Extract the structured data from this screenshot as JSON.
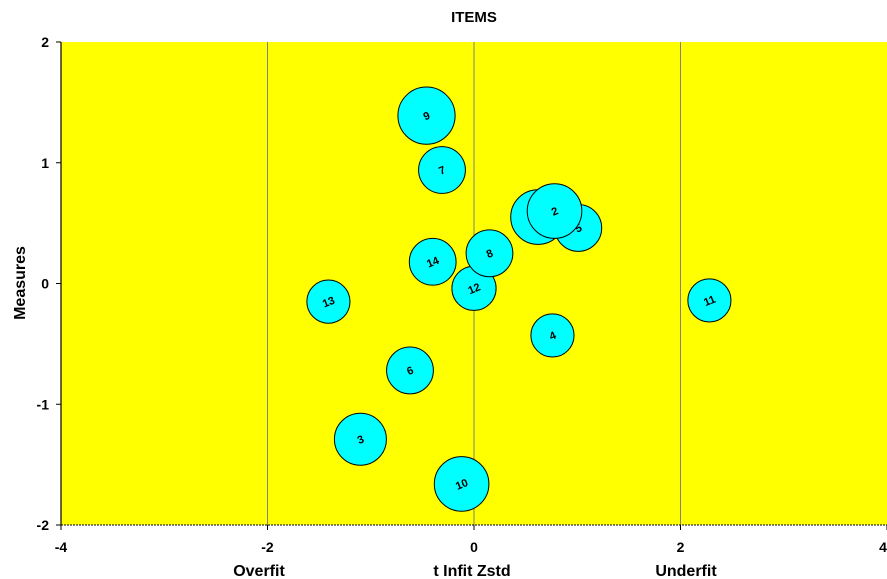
{
  "chart_data": {
    "type": "scatter",
    "subtype": "bubble",
    "title": "ITEMS",
    "xlabel": "t Infit Zstd",
    "ylabel": "Measures",
    "x_region_labels": [
      "Overfit",
      "Underfit"
    ],
    "xlim": [
      -4,
      4
    ],
    "ylim": [
      -2,
      2
    ],
    "x_ticks": [
      -4,
      -2,
      0,
      2,
      4
    ],
    "y_ticks": [
      -2,
      -1,
      0,
      1,
      2
    ],
    "x_tick_labels": [
      "-4",
      "-2",
      "0",
      "2",
      "4"
    ],
    "y_tick_labels": [
      "-2",
      "-1",
      "0",
      "1",
      "2"
    ],
    "grid": "vertical",
    "background_color": "#ffff00",
    "bubble_color": "#00ffff",
    "points": [
      {
        "label": "1",
        "x": 0.62,
        "y": 0.55,
        "size": 1.05
      },
      {
        "label": "2",
        "x": 0.78,
        "y": 0.6,
        "size": 1.05
      },
      {
        "label": "3",
        "x": -1.1,
        "y": -1.29,
        "size": 1.0
      },
      {
        "label": "4",
        "x": 0.76,
        "y": -0.43,
        "size": 0.83
      },
      {
        "label": "5",
        "x": 1.01,
        "y": 0.46,
        "size": 0.9
      },
      {
        "label": "6",
        "x": -0.62,
        "y": -0.72,
        "size": 0.9
      },
      {
        "label": "7",
        "x": -0.31,
        "y": 0.94,
        "size": 0.9
      },
      {
        "label": "8",
        "x": 0.15,
        "y": 0.25,
        "size": 0.9
      },
      {
        "label": "9",
        "x": -0.46,
        "y": 1.39,
        "size": 1.1
      },
      {
        "label": "10",
        "x": -0.12,
        "y": -1.66,
        "size": 1.05
      },
      {
        "label": "11",
        "x": 2.28,
        "y": -0.14,
        "size": 0.83
      },
      {
        "label": "12",
        "x": 0.0,
        "y": -0.04,
        "size": 0.85
      },
      {
        "label": "13",
        "x": -1.41,
        "y": -0.15,
        "size": 0.83
      },
      {
        "label": "14",
        "x": -0.4,
        "y": 0.18,
        "size": 0.9
      }
    ]
  }
}
